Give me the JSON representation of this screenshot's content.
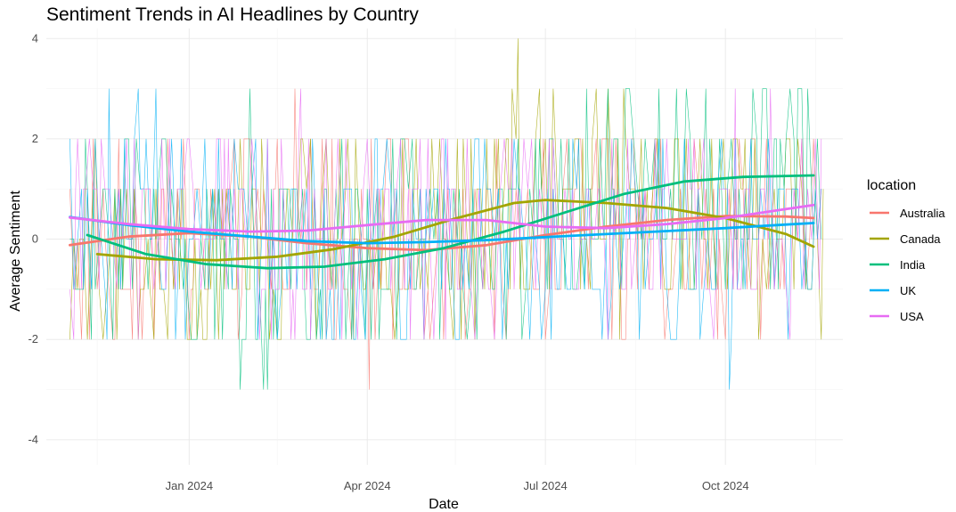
{
  "chart_data": {
    "type": "line",
    "title": "Sentiment Trends in AI Headlines by Country",
    "xlabel": "Date",
    "ylabel": "Average Sentiment",
    "xlim": [
      "2023-10-20",
      "2024-11-30"
    ],
    "ylim": [
      -4.5,
      4.2
    ],
    "x_ticks": [
      {
        "date": "2024-01-01",
        "label": "Jan 2024"
      },
      {
        "date": "2024-04-01",
        "label": "Apr 2024"
      },
      {
        "date": "2024-07-01",
        "label": "Jul 2024"
      },
      {
        "date": "2024-10-01",
        "label": "Oct 2024"
      }
    ],
    "y_ticks": [
      -4,
      -2,
      0,
      2,
      4
    ],
    "grid": true,
    "legend": {
      "title": "location",
      "position": "right"
    },
    "series": [
      {
        "name": "Australia",
        "color": "#F8766D",
        "smooth": [
          [
            "2023-11-01",
            -0.12
          ],
          [
            "2023-12-01",
            0.05
          ],
          [
            "2024-01-01",
            0.12
          ],
          [
            "2024-02-01",
            0.05
          ],
          [
            "2024-03-01",
            -0.08
          ],
          [
            "2024-04-01",
            -0.18
          ],
          [
            "2024-05-01",
            -0.22
          ],
          [
            "2024-06-01",
            -0.12
          ],
          [
            "2024-07-01",
            0.08
          ],
          [
            "2024-08-01",
            0.25
          ],
          [
            "2024-09-01",
            0.38
          ],
          [
            "2024-10-01",
            0.46
          ],
          [
            "2024-11-01",
            0.45
          ],
          [
            "2024-11-15",
            0.42
          ]
        ],
        "raw_range": [
          -3,
          3
        ]
      },
      {
        "name": "Canada",
        "color": "#A3A500",
        "smooth": [
          [
            "2023-11-15",
            -0.3
          ],
          [
            "2023-12-15",
            -0.4
          ],
          [
            "2024-01-15",
            -0.42
          ],
          [
            "2024-02-15",
            -0.35
          ],
          [
            "2024-03-15",
            -0.2
          ],
          [
            "2024-04-15",
            0.05
          ],
          [
            "2024-05-15",
            0.4
          ],
          [
            "2024-06-15",
            0.72
          ],
          [
            "2024-07-01",
            0.78
          ],
          [
            "2024-08-01",
            0.72
          ],
          [
            "2024-09-01",
            0.62
          ],
          [
            "2024-10-01",
            0.42
          ],
          [
            "2024-11-01",
            0.1
          ],
          [
            "2024-11-15",
            -0.15
          ]
        ],
        "raw_range": [
          -4,
          4
        ]
      },
      {
        "name": "India",
        "color": "#00BF7D",
        "smooth": [
          [
            "2023-11-10",
            0.08
          ],
          [
            "2023-12-10",
            -0.3
          ],
          [
            "2024-01-10",
            -0.5
          ],
          [
            "2024-02-10",
            -0.58
          ],
          [
            "2024-03-10",
            -0.55
          ],
          [
            "2024-04-10",
            -0.4
          ],
          [
            "2024-05-10",
            -0.18
          ],
          [
            "2024-06-10",
            0.15
          ],
          [
            "2024-07-10",
            0.52
          ],
          [
            "2024-08-10",
            0.9
          ],
          [
            "2024-09-10",
            1.15
          ],
          [
            "2024-10-10",
            1.24
          ],
          [
            "2024-11-15",
            1.27
          ]
        ],
        "raw_range": [
          -3,
          4
        ]
      },
      {
        "name": "UK",
        "color": "#00B0F6",
        "smooth": [
          [
            "2023-11-01",
            0.44
          ],
          [
            "2023-12-01",
            0.28
          ],
          [
            "2024-01-01",
            0.15
          ],
          [
            "2024-02-01",
            0.05
          ],
          [
            "2024-03-01",
            -0.04
          ],
          [
            "2024-04-01",
            -0.08
          ],
          [
            "2024-05-01",
            -0.06
          ],
          [
            "2024-06-01",
            -0.02
          ],
          [
            "2024-07-01",
            0.04
          ],
          [
            "2024-08-01",
            0.1
          ],
          [
            "2024-09-01",
            0.16
          ],
          [
            "2024-10-01",
            0.22
          ],
          [
            "2024-11-01",
            0.29
          ],
          [
            "2024-11-15",
            0.32
          ]
        ],
        "raw_range": [
          -3.5,
          4
        ]
      },
      {
        "name": "USA",
        "color": "#E76BF3",
        "smooth": [
          [
            "2023-11-01",
            0.43
          ],
          [
            "2023-12-01",
            0.3
          ],
          [
            "2024-01-01",
            0.2
          ],
          [
            "2024-02-01",
            0.15
          ],
          [
            "2024-03-01",
            0.17
          ],
          [
            "2024-04-01",
            0.28
          ],
          [
            "2024-05-01",
            0.38
          ],
          [
            "2024-06-01",
            0.38
          ],
          [
            "2024-07-01",
            0.25
          ],
          [
            "2024-08-01",
            0.22
          ],
          [
            "2024-09-01",
            0.3
          ],
          [
            "2024-10-01",
            0.42
          ],
          [
            "2024-11-01",
            0.6
          ],
          [
            "2024-11-15",
            0.68
          ]
        ],
        "raw_range": [
          -3,
          3
        ]
      }
    ]
  }
}
